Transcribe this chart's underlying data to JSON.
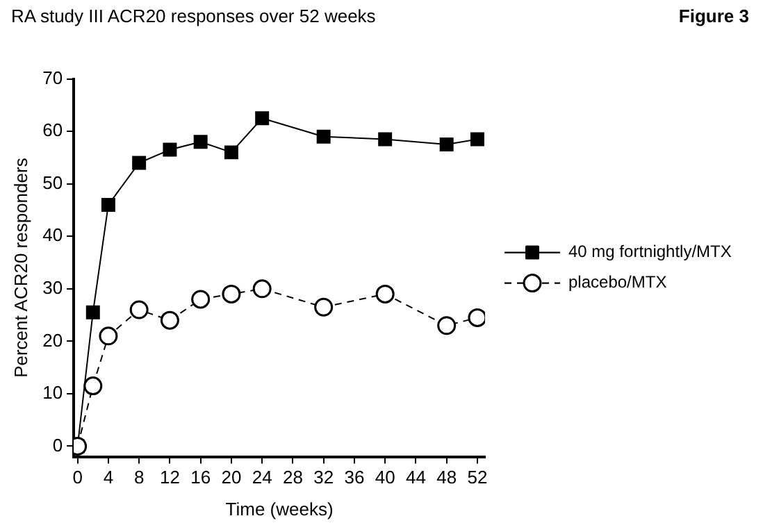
{
  "chart_data": {
    "type": "line",
    "title": "RA study III ACR20 responses over 52 weeks",
    "annotations": [
      "Figure 3"
    ],
    "xlabel": "Time (weeks)",
    "ylabel": "Percent ACR20 responders",
    "x": [
      0,
      2,
      4,
      8,
      12,
      16,
      20,
      24,
      32,
      40,
      48,
      52
    ],
    "series": [
      {
        "name": "40 mg fortnightly/MTX",
        "color": "#000000",
        "marker": "square",
        "line_style": "solid",
        "values": [
          0,
          25.5,
          46,
          54,
          56.5,
          58,
          56,
          62.5,
          59,
          58.5,
          57.5,
          58.5
        ]
      },
      {
        "name": "placebo/MTX",
        "color": "#000000",
        "marker": "circle",
        "line_style": "dashed",
        "values": [
          0,
          11.5,
          21,
          26,
          24,
          28,
          29,
          30,
          26.5,
          29,
          23,
          24.5
        ]
      }
    ],
    "xlim": [
      -0.5,
      53
    ],
    "xticks": [
      0,
      4,
      8,
      12,
      16,
      20,
      24,
      28,
      32,
      36,
      40,
      44,
      48,
      52
    ],
    "ylim": [
      -2,
      70
    ],
    "yticks": [
      0,
      10,
      20,
      30,
      40,
      50,
      60,
      70
    ],
    "grid": false,
    "legend": "right"
  }
}
